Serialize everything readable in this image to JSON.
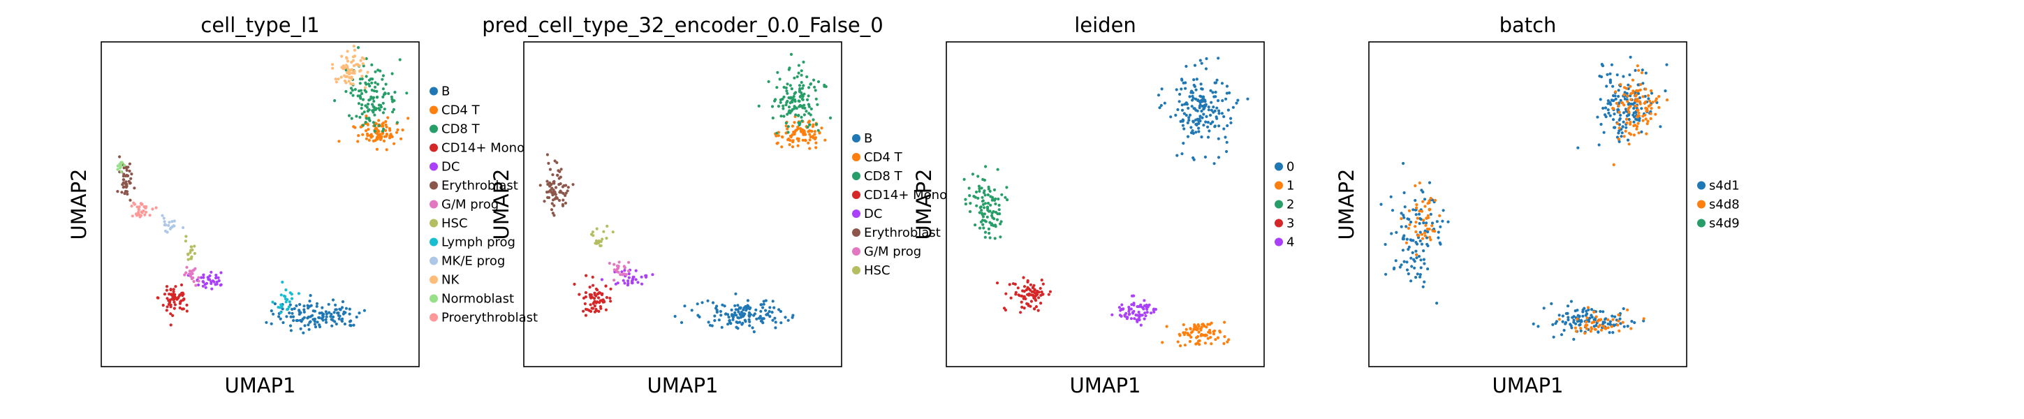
{
  "figure": {
    "panels": [
      {
        "title": "cell_type_l1",
        "xlabel": "UMAP1",
        "ylabel": "UMAP2",
        "legend": [
          {
            "label": "B",
            "color": "#1f77b4"
          },
          {
            "label": "CD4 T",
            "color": "#ff7f0e"
          },
          {
            "label": "CD8 T",
            "color": "#279e68"
          },
          {
            "label": "CD14+ Mono",
            "color": "#d62728"
          },
          {
            "label": "DC",
            "color": "#aa40fc"
          },
          {
            "label": "Erythroblast",
            "color": "#8c564b"
          },
          {
            "label": "G/M prog",
            "color": "#e377c2"
          },
          {
            "label": "HSC",
            "color": "#b5bd61"
          },
          {
            "label": "Lymph prog",
            "color": "#17becf"
          },
          {
            "label": "MK/E prog",
            "color": "#aec7e8"
          },
          {
            "label": "NK",
            "color": "#ffbb78"
          },
          {
            "label": "Normoblast",
            "color": "#98df8a"
          },
          {
            "label": "Proerythroblast",
            "color": "#ff9896"
          }
        ]
      },
      {
        "title": "pred_cell_type_32_encoder_0.0_False_0",
        "xlabel": "UMAP1",
        "ylabel": "UMAP2",
        "legend": [
          {
            "label": "B",
            "color": "#1f77b4"
          },
          {
            "label": "CD4 T",
            "color": "#ff7f0e"
          },
          {
            "label": "CD8 T",
            "color": "#279e68"
          },
          {
            "label": "CD14+ Mono",
            "color": "#d62728"
          },
          {
            "label": "DC",
            "color": "#aa40fc"
          },
          {
            "label": "Erythroblast",
            "color": "#8c564b"
          },
          {
            "label": "G/M prog",
            "color": "#e377c2"
          },
          {
            "label": "HSC",
            "color": "#b5bd61"
          }
        ]
      },
      {
        "title": "leiden",
        "xlabel": "UMAP1",
        "ylabel": "UMAP2",
        "legend": [
          {
            "label": "0",
            "color": "#1f77b4"
          },
          {
            "label": "1",
            "color": "#ff7f0e"
          },
          {
            "label": "2",
            "color": "#279e68"
          },
          {
            "label": "3",
            "color": "#d62728"
          },
          {
            "label": "4",
            "color": "#aa40fc"
          }
        ]
      },
      {
        "title": "batch",
        "xlabel": "UMAP1",
        "ylabel": "UMAP2",
        "legend": [
          {
            "label": "s4d1",
            "color": "#1f77b4"
          },
          {
            "label": "s4d8",
            "color": "#ff7f0e"
          },
          {
            "label": "s4d9",
            "color": "#279e68"
          }
        ]
      }
    ]
  },
  "chart_data": [
    {
      "type": "scatter",
      "title": "cell_type_l1",
      "xlabel": "UMAP1",
      "ylabel": "UMAP2",
      "grid": false,
      "legend_position": "right",
      "series": [
        {
          "name": "B",
          "color": "#1f77b4",
          "clusters": [
            [
              0.68,
              0.84,
              0.14,
              0.045,
              0.58
            ]
          ]
        },
        {
          "name": "CD4 T",
          "color": "#ff7f0e",
          "clusters": [
            [
              0.87,
              0.28,
              0.07,
              0.045,
              0.42
            ]
          ]
        },
        {
          "name": "CD8 T",
          "color": "#279e68",
          "clusters": [
            [
              0.85,
              0.17,
              0.08,
              0.09,
              0.55
            ]
          ]
        },
        {
          "name": "CD14+ Mono",
          "color": "#d62728",
          "clusters": [
            [
              0.23,
              0.79,
              0.05,
              0.05,
              0.28
            ]
          ]
        },
        {
          "name": "DC",
          "color": "#aa40fc",
          "clusters": [
            [
              0.34,
              0.73,
              0.05,
              0.025,
              0.16
            ]
          ]
        },
        {
          "name": "Erythroblast",
          "color": "#8c564b",
          "clusters": [
            [
              0.08,
              0.43,
              0.02,
              0.06,
              0.2
            ]
          ]
        },
        {
          "name": "G/M prog",
          "color": "#e377c2",
          "clusters": [
            [
              0.29,
              0.72,
              0.025,
              0.025,
              0.08
            ]
          ]
        },
        {
          "name": "HSC",
          "color": "#b5bd61",
          "clusters": [
            [
              0.28,
              0.64,
              0.02,
              0.04,
              0.07
            ]
          ]
        },
        {
          "name": "Lymph prog",
          "color": "#17becf",
          "clusters": [
            [
              0.58,
              0.8,
              0.035,
              0.03,
              0.1
            ]
          ]
        },
        {
          "name": "MK/E prog",
          "color": "#aec7e8",
          "clusters": [
            [
              0.21,
              0.56,
              0.03,
              0.03,
              0.08
            ]
          ]
        },
        {
          "name": "NK",
          "color": "#ffbb78",
          "clusters": [
            [
              0.78,
              0.08,
              0.05,
              0.06,
              0.28
            ]
          ]
        },
        {
          "name": "Normoblast",
          "color": "#98df8a",
          "clusters": [
            [
              0.06,
              0.38,
              0.015,
              0.03,
              0.05
            ]
          ]
        },
        {
          "name": "Proerythroblast",
          "color": "#ff9896",
          "clusters": [
            [
              0.13,
              0.52,
              0.04,
              0.03,
              0.14
            ]
          ]
        }
      ]
    },
    {
      "type": "scatter",
      "title": "pred_cell_type_32_encoder_0.0_False_0",
      "xlabel": "UMAP1",
      "ylabel": "UMAP2",
      "grid": false,
      "legend_position": "right",
      "series": [
        {
          "name": "B",
          "color": "#1f77b4",
          "clusters": [
            [
              0.68,
              0.84,
              0.14,
              0.045,
              0.6
            ]
          ]
        },
        {
          "name": "CD4 T",
          "color": "#ff7f0e",
          "clusters": [
            [
              0.87,
              0.28,
              0.07,
              0.045,
              0.4
            ]
          ]
        },
        {
          "name": "CD8 T",
          "color": "#279e68",
          "clusters": [
            [
              0.86,
              0.18,
              0.08,
              0.09,
              0.6
            ]
          ]
        },
        {
          "name": "CD14+ Mono",
          "color": "#d62728",
          "clusters": [
            [
              0.23,
              0.79,
              0.05,
              0.05,
              0.28
            ]
          ]
        },
        {
          "name": "DC",
          "color": "#aa40fc",
          "clusters": [
            [
              0.34,
              0.73,
              0.05,
              0.025,
              0.14
            ]
          ]
        },
        {
          "name": "Erythroblast",
          "color": "#8c564b",
          "clusters": [
            [
              0.1,
              0.45,
              0.04,
              0.07,
              0.32
            ]
          ]
        },
        {
          "name": "G/M prog",
          "color": "#e377c2",
          "clusters": [
            [
              0.3,
              0.7,
              0.03,
              0.03,
              0.1
            ]
          ]
        },
        {
          "name": "HSC",
          "color": "#b5bd61",
          "clusters": [
            [
              0.24,
              0.6,
              0.03,
              0.04,
              0.08
            ]
          ]
        }
      ]
    },
    {
      "type": "scatter",
      "title": "leiden",
      "xlabel": "UMAP1",
      "ylabel": "UMAP2",
      "grid": false,
      "legend_position": "right",
      "series": [
        {
          "name": "0",
          "color": "#1f77b4",
          "clusters": [
            [
              0.8,
              0.2,
              0.1,
              0.12,
              0.8
            ]
          ]
        },
        {
          "name": "1",
          "color": "#ff7f0e",
          "clusters": [
            [
              0.8,
              0.9,
              0.08,
              0.04,
              0.35
            ]
          ]
        },
        {
          "name": "2",
          "color": "#279e68",
          "clusters": [
            [
              0.12,
              0.5,
              0.05,
              0.1,
              0.45
            ]
          ]
        },
        {
          "name": "3",
          "color": "#d62728",
          "clusters": [
            [
              0.26,
              0.78,
              0.06,
              0.05,
              0.35
            ]
          ]
        },
        {
          "name": "4",
          "color": "#aa40fc",
          "clusters": [
            [
              0.6,
              0.83,
              0.06,
              0.04,
              0.3
            ]
          ]
        }
      ]
    },
    {
      "type": "scatter",
      "title": "batch",
      "xlabel": "UMAP1",
      "ylabel": "UMAP2",
      "grid": false,
      "legend_position": "right",
      "series": [
        {
          "name": "s4d1",
          "color": "#1f77b4",
          "clusters": [
            [
              0.81,
              0.2,
              0.09,
              0.12,
              0.7
            ],
            [
              0.68,
              0.86,
              0.14,
              0.045,
              0.5
            ],
            [
              0.15,
              0.6,
              0.08,
              0.15,
              0.5
            ]
          ]
        },
        {
          "name": "s4d8",
          "color": "#ff7f0e",
          "clusters": [
            [
              0.84,
              0.2,
              0.07,
              0.1,
              0.45
            ],
            [
              0.7,
              0.87,
              0.1,
              0.035,
              0.2
            ],
            [
              0.17,
              0.55,
              0.06,
              0.1,
              0.2
            ]
          ]
        },
        {
          "name": "s4d9",
          "color": "#279e68",
          "clusters": [
            [
              0.5,
              0.5,
              0.3,
              0.3,
              0.0
            ]
          ]
        }
      ]
    }
  ]
}
